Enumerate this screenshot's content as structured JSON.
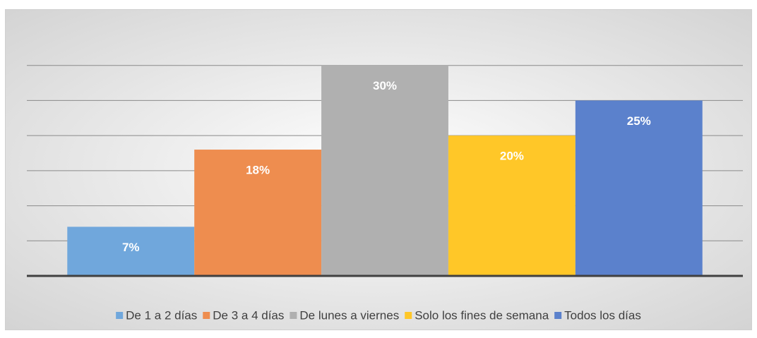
{
  "chart_data": {
    "type": "bar",
    "categories": [
      null
    ],
    "series": [
      {
        "name": "De 1 a 2 días",
        "color": "#70a7dc",
        "values": [
          7
        ],
        "value_labels": [
          "7%"
        ]
      },
      {
        "name": "De 3 a 4 días",
        "color": "#ee8d4f",
        "values": [
          18
        ],
        "value_labels": [
          "18%"
        ]
      },
      {
        "name": "De lunes a viernes",
        "color": "#b0b0b0",
        "values": [
          30
        ],
        "value_labels": [
          "30%"
        ]
      },
      {
        "name": "Solo los fines de semana",
        "color": "#ffc728",
        "values": [
          20
        ],
        "value_labels": [
          "20%"
        ]
      },
      {
        "name": "Todos los días",
        "color": "#5b81cc",
        "values": [
          25
        ],
        "value_labels": [
          "25%"
        ]
      }
    ],
    "ylim": [
      0,
      35
    ],
    "yticks": [
      0,
      5,
      10,
      15,
      20,
      25,
      30
    ],
    "grid": true,
    "legend": "bottom"
  }
}
